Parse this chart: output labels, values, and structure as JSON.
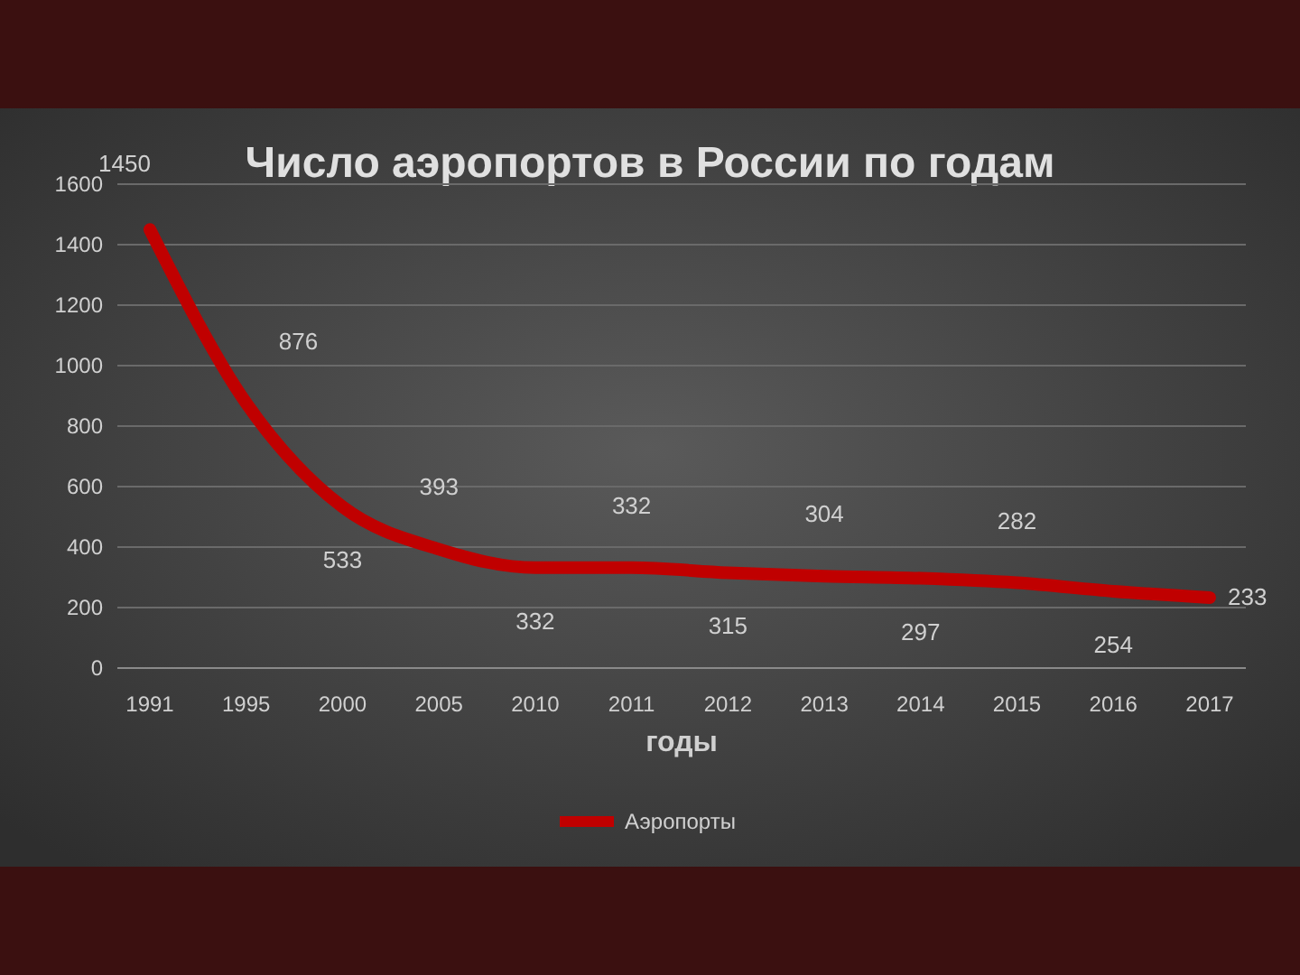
{
  "chart_data": {
    "type": "line",
    "title": "Число аэропортов в России по годам",
    "xlabel": "годы",
    "categories": [
      "1991",
      "1995",
      "2000",
      "2005",
      "2010",
      "2011",
      "2012",
      "2013",
      "2014",
      "2015",
      "2016",
      "2017"
    ],
    "series": [
      {
        "name": "Аэропорты",
        "color": "#c00000",
        "values": [
          1450,
          876,
          533,
          393,
          332,
          332,
          315,
          304,
          297,
          282,
          254,
          233
        ]
      }
    ],
    "ylim": [
      0,
      1600
    ],
    "yticks": [
      0,
      200,
      400,
      600,
      800,
      1000,
      1200,
      1400,
      1600
    ],
    "grid": "y",
    "legend": "bottom",
    "data_labels": true,
    "marker": "none",
    "line_style": "solid"
  }
}
